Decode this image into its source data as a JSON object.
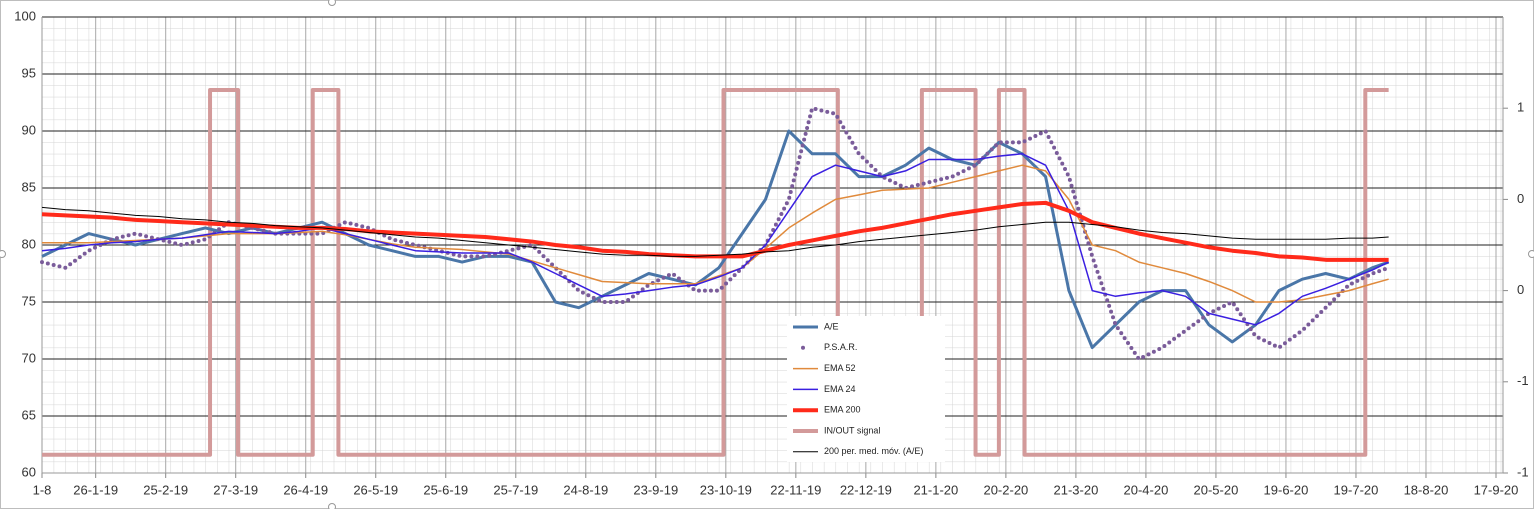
{
  "chart_data": {
    "type": "line",
    "x": [
      "2019-01-03",
      "2019-01-13",
      "2019-01-23",
      "2019-02-02",
      "2019-02-12",
      "2019-02-22",
      "2019-03-04",
      "2019-03-14",
      "2019-03-24",
      "2019-04-03",
      "2019-04-13",
      "2019-04-23",
      "2019-05-03",
      "2019-05-13",
      "2019-05-23",
      "2019-06-02",
      "2019-06-12",
      "2019-06-22",
      "2019-07-02",
      "2019-07-12",
      "2019-07-22",
      "2019-08-01",
      "2019-08-11",
      "2019-08-21",
      "2019-08-31",
      "2019-09-10",
      "2019-09-20",
      "2019-09-30",
      "2019-10-10",
      "2019-10-20",
      "2019-10-30",
      "2019-11-09",
      "2019-11-19",
      "2019-11-29",
      "2019-12-09",
      "2019-12-19",
      "2019-12-29",
      "2020-01-08",
      "2020-01-18",
      "2020-01-28",
      "2020-02-07",
      "2020-02-17",
      "2020-02-27",
      "2020-03-08",
      "2020-03-18",
      "2020-03-28",
      "2020-04-07",
      "2020-04-17",
      "2020-04-27",
      "2020-05-07",
      "2020-05-17",
      "2020-05-27",
      "2020-06-06",
      "2020-06-16",
      "2020-06-26",
      "2020-07-06",
      "2020-07-16",
      "2020-07-26",
      "2020-08-02"
    ],
    "xlim": [
      "2019-01-03",
      "2020-09-20"
    ],
    "xticks": [
      {
        "value": "2019-01-03",
        "label": "1-8"
      },
      {
        "value": "2019-01-26",
        "label": "26-1-19"
      },
      {
        "value": "2019-02-25",
        "label": "25-2-19"
      },
      {
        "value": "2019-03-27",
        "label": "27-3-19"
      },
      {
        "value": "2019-04-26",
        "label": "26-4-19"
      },
      {
        "value": "2019-05-26",
        "label": "26-5-19"
      },
      {
        "value": "2019-06-25",
        "label": "25-6-19"
      },
      {
        "value": "2019-07-25",
        "label": "25-7-19"
      },
      {
        "value": "2019-08-24",
        "label": "24-8-19"
      },
      {
        "value": "2019-09-23",
        "label": "23-9-19"
      },
      {
        "value": "2019-10-23",
        "label": "23-10-19"
      },
      {
        "value": "2019-11-22",
        "label": "22-11-19"
      },
      {
        "value": "2019-12-22",
        "label": "22-12-19"
      },
      {
        "value": "2020-01-21",
        "label": "21-1-20"
      },
      {
        "value": "2020-02-20",
        "label": "20-2-20"
      },
      {
        "value": "2020-03-21",
        "label": "21-3-20"
      },
      {
        "value": "2020-04-20",
        "label": "20-4-20"
      },
      {
        "value": "2020-05-20",
        "label": "20-5-20"
      },
      {
        "value": "2020-06-19",
        "label": "19-6-20"
      },
      {
        "value": "2020-07-19",
        "label": "19-7-20"
      },
      {
        "value": "2020-08-18",
        "label": "18-8-20"
      },
      {
        "value": "2020-09-17",
        "label": "17-9-20"
      }
    ],
    "ylim": [
      60,
      100
    ],
    "yticks": [
      60,
      65,
      70,
      75,
      80,
      85,
      90,
      95,
      100
    ],
    "y2lim": [
      -1.25,
      1.25
    ],
    "y2ticks": [
      {
        "value": -1.25,
        "label": "-1"
      },
      {
        "value": -0.75,
        "label": "-1"
      },
      {
        "value": -0.25,
        "label": "0"
      },
      {
        "value": 0.25,
        "label": "0"
      },
      {
        "value": 0.75,
        "label": "1"
      }
    ],
    "grid": true,
    "legend": "bottom",
    "series": [
      {
        "name": "A/E",
        "color": "#4a76a8",
        "style": "medium",
        "values": [
          79,
          80,
          81,
          80.5,
          80,
          80.5,
          81,
          81.5,
          81,
          81.5,
          81,
          81.5,
          82,
          81,
          80,
          79.5,
          79,
          79,
          78.5,
          79,
          79,
          78.5,
          75,
          74.5,
          75.5,
          76.5,
          77.5,
          77,
          76.5,
          78,
          81,
          84,
          90,
          88,
          88,
          86,
          86,
          87,
          88.5,
          87.5,
          87,
          89,
          88,
          86,
          76,
          71,
          73,
          75,
          76,
          76,
          73,
          71.5,
          73,
          76,
          77,
          77.5,
          77,
          78,
          78.5
        ]
      },
      {
        "name": "P.S.A.R.",
        "color": "#7a5c9a",
        "style": "dotted",
        "values": [
          78.5,
          78,
          79.5,
          80.5,
          81,
          80.5,
          80,
          80.5,
          82,
          81.5,
          81,
          81,
          81,
          82,
          81.5,
          80.5,
          80,
          79.5,
          79,
          79,
          79.5,
          80,
          78,
          76,
          75,
          75,
          76.5,
          77.5,
          76,
          76,
          78,
          80,
          84,
          92,
          91.5,
          88,
          86,
          85,
          85.5,
          86,
          87,
          89,
          89,
          90,
          86,
          79,
          73,
          70,
          71,
          72.5,
          74,
          75,
          72,
          71,
          72.5,
          74.5,
          76.5,
          77.5,
          78
        ]
      },
      {
        "name": "EMA 52",
        "color": "#e08a3c",
        "style": "thin",
        "values": [
          80.2,
          80.2,
          80.2,
          80.3,
          80.4,
          80.5,
          80.6,
          80.8,
          81,
          81,
          81,
          81.1,
          81.2,
          80.9,
          80.5,
          80.1,
          79.8,
          79.7,
          79.6,
          79.4,
          79.2,
          78.6,
          78,
          77.4,
          76.8,
          76.7,
          76.6,
          76.6,
          76.6,
          77.3,
          78,
          79.7,
          81.5,
          82.8,
          84,
          84.4,
          84.8,
          84.9,
          85,
          85.5,
          86,
          86.5,
          87,
          86.5,
          84,
          80,
          79.5,
          78.5,
          78,
          77.5,
          76.8,
          76,
          75,
          75,
          75.2,
          75.6,
          76,
          76.6,
          77
        ]
      },
      {
        "name": "EMA 24",
        "color": "#3a1fe0",
        "style": "thin",
        "values": [
          79.5,
          79.7,
          80,
          80.2,
          80.3,
          80.5,
          80.6,
          80.9,
          81.2,
          81.1,
          81,
          81.2,
          81.5,
          81,
          80.5,
          80,
          79.5,
          79.4,
          79.3,
          79.3,
          79.3,
          78.5,
          77.5,
          76.5,
          75.5,
          75.7,
          76,
          76.3,
          76.5,
          77.2,
          78,
          80,
          83,
          86,
          87,
          86.5,
          86,
          86.5,
          87.5,
          87.5,
          87.5,
          87.8,
          88,
          87,
          83,
          76,
          75.5,
          75.8,
          76,
          75.5,
          74,
          73.5,
          73,
          74,
          75.5,
          76.2,
          77,
          77.8,
          78.5
        ]
      },
      {
        "name": "EMA 200",
        "color": "#ff2a1a",
        "style": "thick",
        "values": [
          82.7,
          82.6,
          82.5,
          82.4,
          82.2,
          82.1,
          82,
          81.9,
          81.8,
          81.7,
          81.6,
          81.5,
          81.5,
          81.4,
          81.2,
          81.1,
          81,
          80.9,
          80.8,
          80.7,
          80.5,
          80.3,
          80,
          79.8,
          79.5,
          79.4,
          79.2,
          79.1,
          79,
          79,
          79,
          79.5,
          80,
          80.4,
          80.8,
          81.2,
          81.5,
          81.9,
          82.3,
          82.7,
          83,
          83.3,
          83.6,
          83.7,
          83,
          82,
          81.5,
          81,
          80.6,
          80.2,
          79.8,
          79.5,
          79.3,
          79,
          78.9,
          78.7,
          78.7,
          78.7,
          78.7
        ]
      },
      {
        "name": "IN/OUT signal",
        "color": "#d39a9a",
        "style": "signal",
        "axis": "y2",
        "step": true,
        "x": [
          "2019-01-03",
          "2019-03-16",
          "2019-03-28",
          "2019-04-29",
          "2019-05-10",
          "2019-10-22",
          "2019-12-10",
          "2020-01-15",
          "2020-02-07",
          "2020-02-17",
          "2020-02-28",
          "2020-07-23",
          "2020-08-02"
        ],
        "values": [
          -1.15,
          0.85,
          -1.15,
          0.85,
          -1.15,
          0.85,
          -1.15,
          0.85,
          -1.15,
          0.85,
          -1.15,
          0.85,
          0.85
        ]
      },
      {
        "name": "200 per. med. móv. (A/E)",
        "color": "#000000",
        "style": "hairline",
        "values": [
          83.3,
          83.1,
          83,
          82.8,
          82.6,
          82.5,
          82.3,
          82.2,
          82,
          81.9,
          81.7,
          81.6,
          81.5,
          81.3,
          81.1,
          80.9,
          80.7,
          80.6,
          80.4,
          80.2,
          80,
          79.8,
          79.6,
          79.4,
          79.2,
          79.1,
          79.1,
          79,
          79,
          79.1,
          79.2,
          79.4,
          79.5,
          79.8,
          80,
          80.3,
          80.5,
          80.7,
          80.9,
          81.1,
          81.3,
          81.6,
          81.8,
          82,
          82,
          81.8,
          81.6,
          81.3,
          81.1,
          81,
          80.8,
          80.6,
          80.5,
          80.5,
          80.5,
          80.5,
          80.6,
          80.6,
          80.7
        ]
      }
    ]
  }
}
